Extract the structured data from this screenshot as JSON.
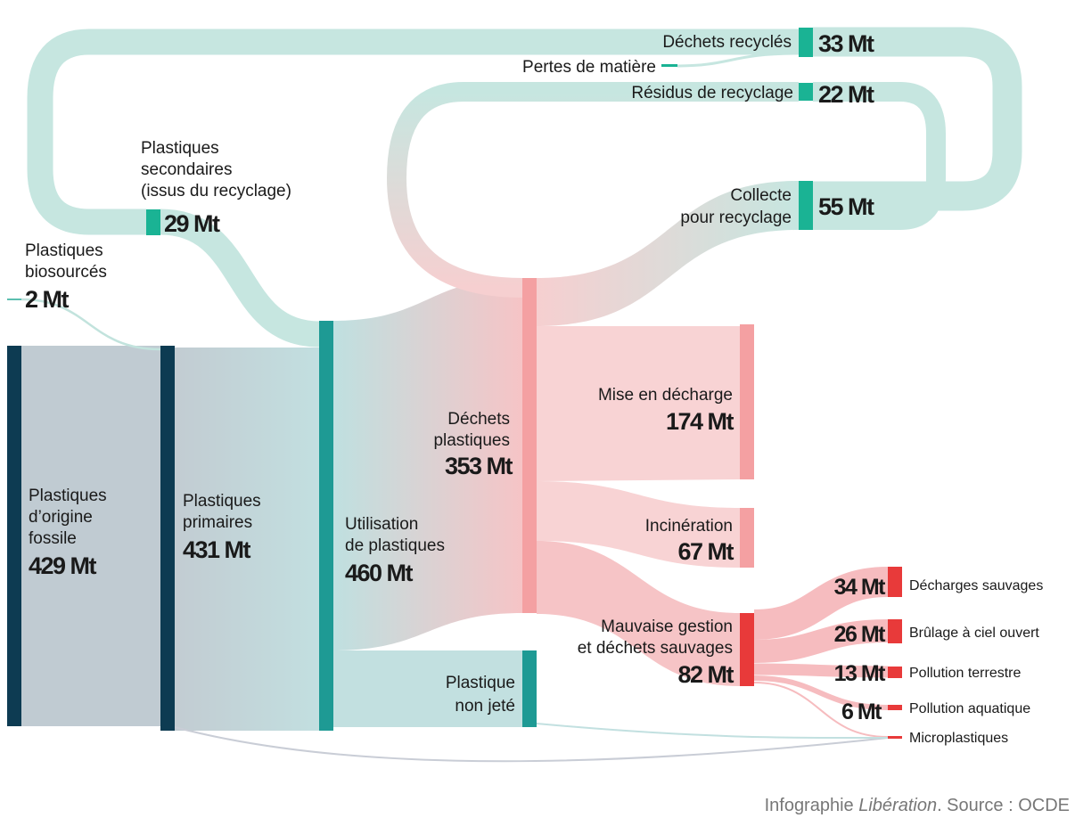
{
  "nodes": {
    "fossile": {
      "label": [
        "Plastiques",
        "d’origine",
        "fossile"
      ],
      "value": "429 Mt"
    },
    "primaires": {
      "label": [
        "Plastiques",
        "primaires"
      ],
      "value": "431 Mt"
    },
    "biosources": {
      "label": [
        "Plastiques",
        "biosourcés"
      ],
      "value": "2 Mt"
    },
    "secondaires": {
      "label": [
        "Plastiques",
        "secondaires",
        "(issus du recyclage)"
      ],
      "value": "29 Mt"
    },
    "utilisation": {
      "label": [
        "Utilisation",
        "de plastiques"
      ],
      "value": "460 Mt"
    },
    "dechets": {
      "label": [
        "Déchets",
        "plastiques"
      ],
      "value": "353 Mt"
    },
    "non_jete": {
      "label": [
        "Plastique",
        "non jeté"
      ]
    },
    "collecte": {
      "label": [
        "Collecte",
        "pour recyclage"
      ],
      "value": "55 Mt"
    },
    "recycles": {
      "label": [
        "Déchets recyclés"
      ],
      "value": "33 Mt"
    },
    "pertes": {
      "label": [
        "Pertes de matière"
      ]
    },
    "residus": {
      "label": [
        "Résidus de recyclage"
      ],
      "value": "22 Mt"
    },
    "decharge": {
      "label": [
        "Mise en décharge"
      ],
      "value": "174 Mt"
    },
    "incineration": {
      "label": [
        "Incinération"
      ],
      "value": "67 Mt"
    },
    "mauvaise": {
      "label": [
        "Mauvaise gestion",
        "et déchets sauvages"
      ],
      "value": "82 Mt"
    },
    "sauvages": {
      "label": [
        "Décharges sauvages"
      ],
      "value": "34 Mt"
    },
    "brulage": {
      "label": [
        "Brûlage à ciel ouvert"
      ],
      "value": "26 Mt"
    },
    "terrestre": {
      "label": [
        "Pollution terrestre"
      ],
      "value": "13 Mt"
    },
    "aquatique": {
      "label": [
        "Pollution aquatique"
      ],
      "value": "6 Mt"
    },
    "micro": {
      "label": [
        "Microplastiques"
      ]
    }
  },
  "source": {
    "prefix": "Infographie ",
    "name": "Libération",
    "suffix": ". Source : OCDE"
  }
}
